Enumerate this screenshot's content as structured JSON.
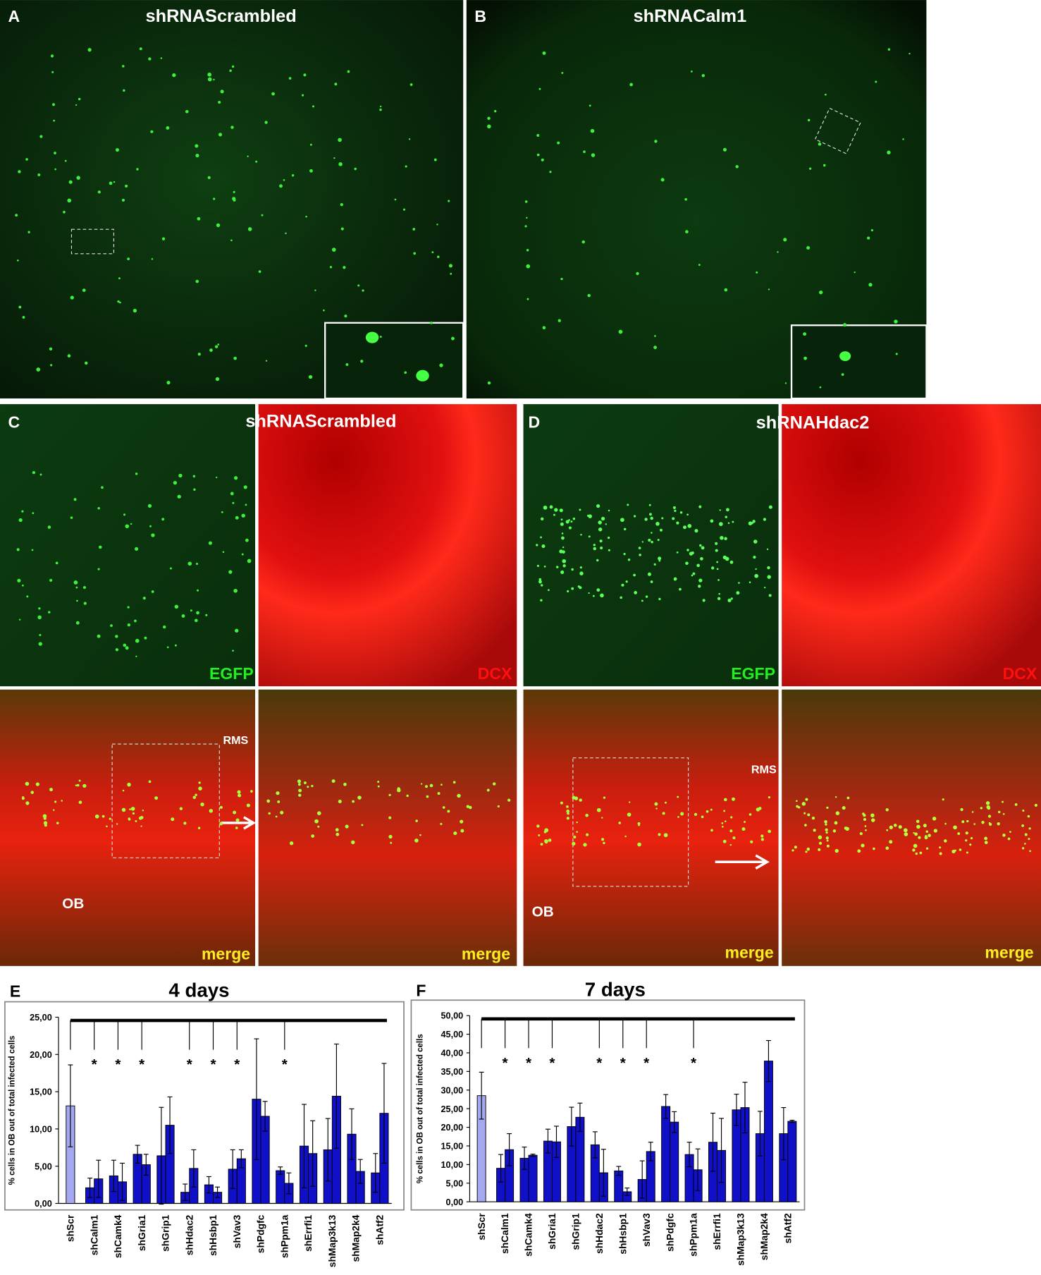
{
  "figure": {
    "panels": [
      {
        "letter": "A",
        "title": "shRNAScrambled"
      },
      {
        "letter": "B",
        "title": "shRNACalm1"
      },
      {
        "letter": "C",
        "title": "shRNAScrambled",
        "egfp": "EGFP",
        "dcx": "DCX",
        "rms": "RMS",
        "ob": "OB",
        "merge": "merge",
        "merge_zoom": "merge"
      },
      {
        "letter": "D",
        "title": "shRNAHdac2",
        "egfp": "EGFP",
        "dcx": "DCX",
        "rms": "RMS",
        "ob": "OB",
        "merge": "merge",
        "merge_zoom": "merge"
      }
    ]
  },
  "chart_data": [
    {
      "type": "bar",
      "panel": "E",
      "title": "4 days",
      "ylabel": "% cells in OB out of total infected cells",
      "categories": [
        "shScr",
        "shCalm1",
        "shCamk4",
        "shGria1",
        "shGrip1",
        "shHdac2",
        "shHsbp1",
        "shVav3",
        "shPdgfc",
        "shPpm1a",
        "shErrfi1",
        "shMap3k13",
        "shMap2k4",
        "shAtf2"
      ],
      "series": [
        {
          "color": "#a4a8f0",
          "values": [
            13.1,
            null,
            null,
            null,
            null,
            null,
            null,
            null,
            null,
            null,
            null,
            null,
            null,
            null
          ],
          "errors": [
            5.5,
            null,
            null,
            null,
            null,
            null,
            null,
            null,
            null,
            null,
            null,
            null,
            null,
            null
          ]
        },
        {
          "color": "#1010c8",
          "values": [
            null,
            2.1,
            3.7,
            6.6,
            6.4,
            1.5,
            2.5,
            4.6,
            14.0,
            4.4,
            7.7,
            7.2,
            9.3,
            4.1
          ],
          "errors": [
            null,
            1.3,
            2.1,
            1.2,
            6.5,
            1.1,
            1.1,
            2.6,
            8.1,
            0.5,
            5.6,
            4.2,
            3.4,
            2.6
          ]
        },
        {
          "color": "#1010c8",
          "values": [
            null,
            3.3,
            2.9,
            5.2,
            10.5,
            4.7,
            1.5,
            6.0,
            11.7,
            2.7,
            6.7,
            14.4,
            4.3,
            12.1
          ],
          "errors": [
            null,
            2.5,
            2.5,
            1.4,
            3.8,
            2.5,
            0.7,
            1.2,
            2.0,
            1.4,
            4.4,
            7.0,
            1.6,
            6.7
          ]
        }
      ],
      "significance": [
        null,
        "*",
        "*",
        "*",
        null,
        "*",
        "*",
        "*",
        null,
        "*",
        null,
        null,
        null,
        null
      ],
      "ylim": [
        0,
        25
      ],
      "yticks": [
        {
          "value": 0,
          "label": "0,00"
        },
        {
          "value": 5,
          "label": "5,00"
        },
        {
          "value": 10,
          "label": "10,00"
        },
        {
          "value": 15,
          "label": "15,00"
        },
        {
          "value": 20,
          "label": "20,00"
        },
        {
          "value": 25,
          "label": "25,00"
        }
      ]
    },
    {
      "type": "bar",
      "panel": "F",
      "title": "7 days",
      "ylabel": "% cells in OB out of total infected cells",
      "categories": [
        "shScr",
        "shCalm1",
        "shCamk4",
        "shGria1",
        "shGrip1",
        "shHdac2",
        "shHsbp1",
        "shVav3",
        "shPdgfc",
        "shPpm1a",
        "shErrfi1",
        "shMap3k13",
        "shMap2k4",
        "shAtf2"
      ],
      "series": [
        {
          "color": "#a4a8f0",
          "values": [
            28.5,
            null,
            null,
            null,
            null,
            null,
            null,
            null,
            null,
            null,
            null,
            null,
            null,
            null
          ],
          "errors": [
            6.3,
            null,
            null,
            null,
            null,
            null,
            null,
            null,
            null,
            null,
            null,
            null,
            null,
            null
          ]
        },
        {
          "color": "#1010c8",
          "values": [
            null,
            9.0,
            11.7,
            16.3,
            20.2,
            15.3,
            8.3,
            6.0,
            25.6,
            12.7,
            16.0,
            24.7,
            18.3,
            18.3
          ],
          "errors": [
            null,
            3.7,
            3.0,
            3.2,
            5.2,
            3.5,
            1.2,
            5.0,
            3.2,
            3.3,
            7.8,
            4.2,
            6.0,
            7.0
          ]
        },
        {
          "color": "#1010c8",
          "values": [
            null,
            14.0,
            12.5,
            16.1,
            22.7,
            7.8,
            2.7,
            13.5,
            21.4,
            8.6,
            13.8,
            25.3,
            37.8,
            21.6
          ],
          "errors": [
            null,
            4.3,
            0.3,
            4.2,
            3.8,
            6.3,
            1.0,
            2.5,
            2.8,
            5.6,
            8.6,
            6.8,
            5.5,
            0.3
          ]
        }
      ],
      "significance": [
        null,
        "*",
        "*",
        "*",
        null,
        "*",
        "*",
        "*",
        null,
        "*",
        null,
        null,
        null,
        null
      ],
      "ylim": [
        0,
        50
      ],
      "yticks": [
        {
          "value": 0,
          "label": "0,00"
        },
        {
          "value": 5,
          "label": "5,00"
        },
        {
          "value": 10,
          "label": "10,00"
        },
        {
          "value": 15,
          "label": "15,00"
        },
        {
          "value": 20,
          "label": "20,00"
        },
        {
          "value": 25,
          "label": "25,00"
        },
        {
          "value": 30,
          "label": "30,00"
        },
        {
          "value": 35,
          "label": "35,00"
        },
        {
          "value": 40,
          "label": "40,00"
        },
        {
          "value": 45,
          "label": "45,00"
        },
        {
          "value": 50,
          "label": "50,00"
        }
      ]
    }
  ]
}
